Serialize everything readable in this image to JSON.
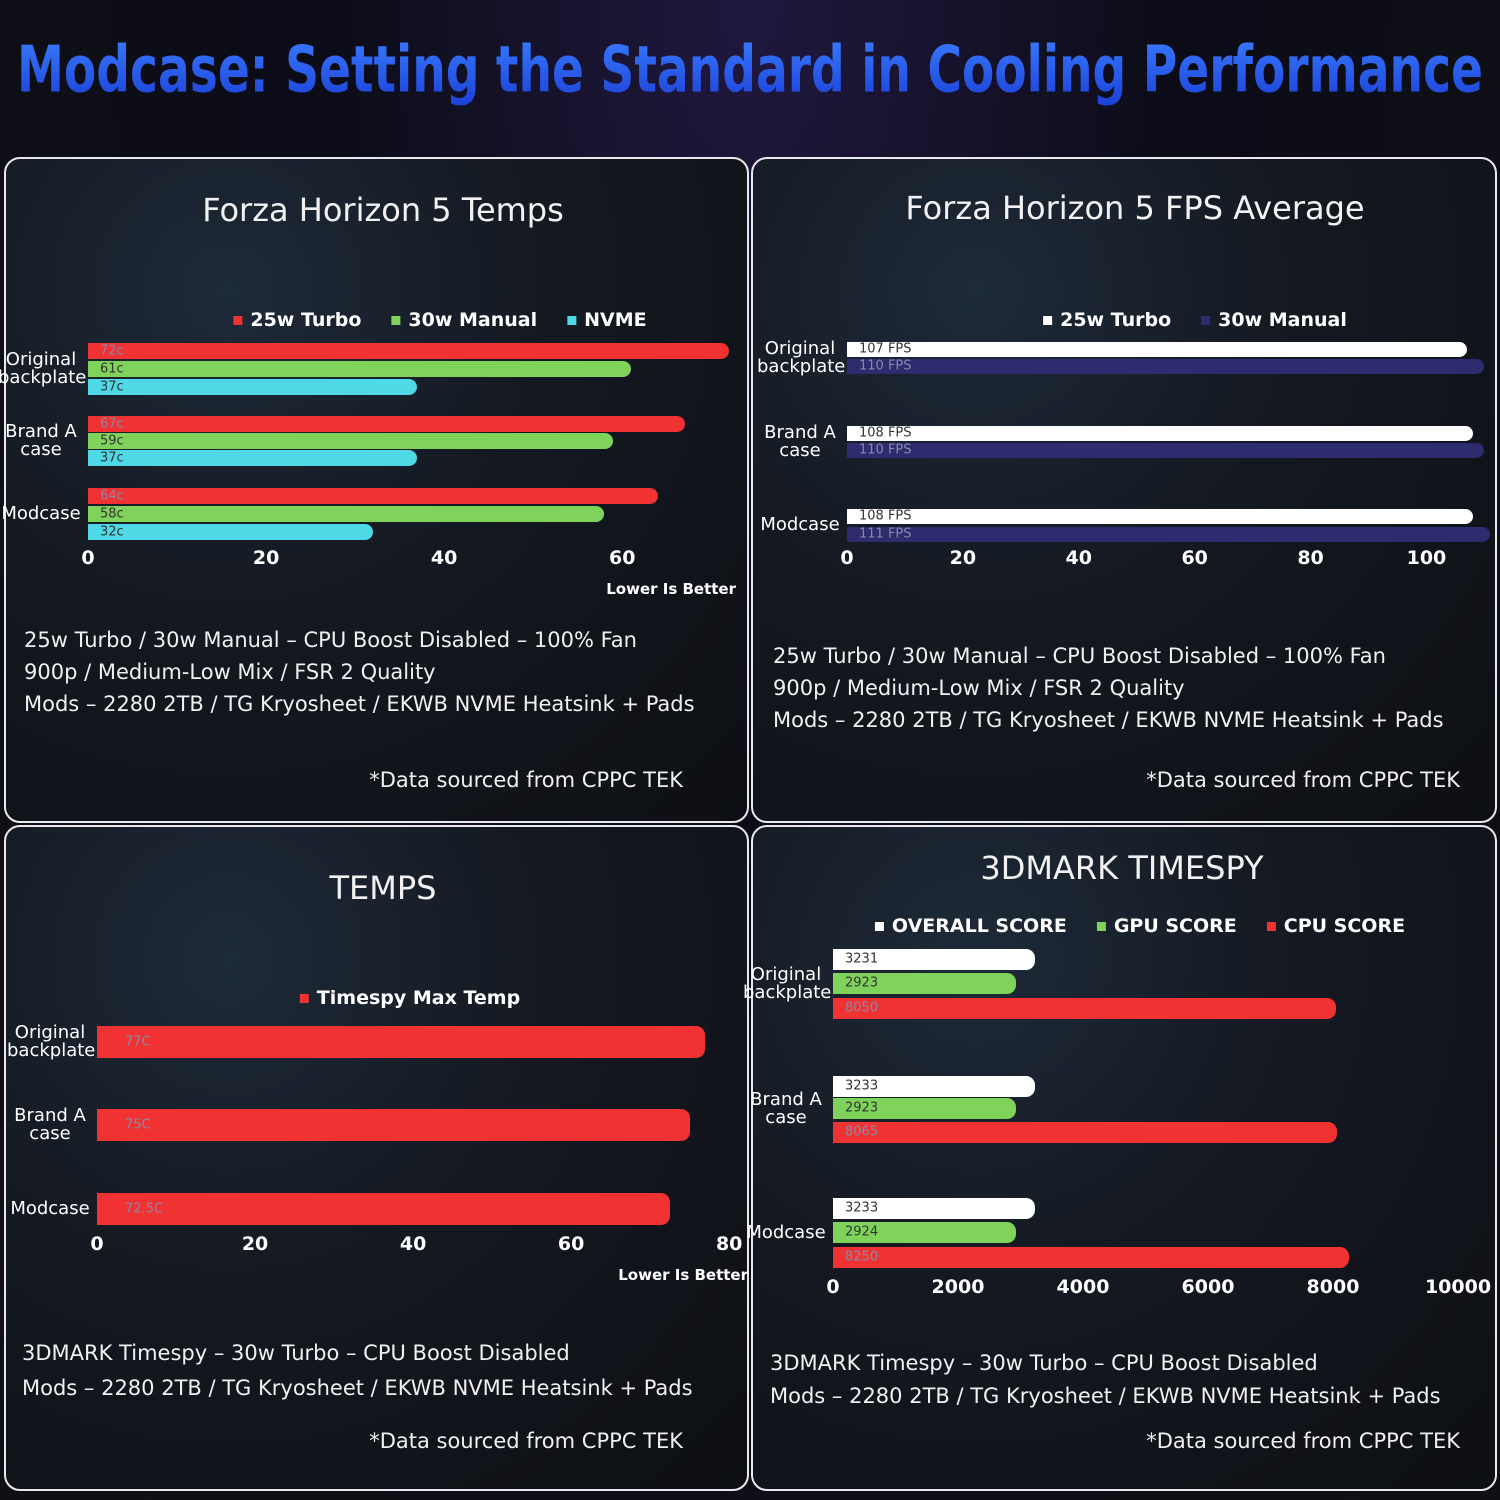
{
  "title": "Modcase: Setting the Standard in Cooling Performance",
  "chart_data": [
    {
      "type": "bar",
      "orientation": "horizontal",
      "title": "Forza Horizon 5 Temps",
      "categories": [
        "Original backplate",
        "Brand A case",
        "Modcase"
      ],
      "series": [
        {
          "name": "25w Turbo",
          "color": "#f03232",
          "values": [
            72,
            67,
            64
          ],
          "value_labels": [
            "72c",
            "67c",
            "64c"
          ]
        },
        {
          "name": "30w Manual",
          "color": "#7fd35a",
          "values": [
            61,
            59,
            58
          ],
          "value_labels": [
            "61c",
            "59c",
            "58c"
          ]
        },
        {
          "name": "NVME",
          "color": "#4fd8e6",
          "values": [
            37,
            37,
            32
          ],
          "value_labels": [
            "37c",
            "37c",
            "32c"
          ]
        }
      ],
      "xlim": [
        0,
        73
      ],
      "xticks": [
        0,
        20,
        40,
        60
      ],
      "annotation": "Lower Is Better",
      "notes": [
        "25w Turbo / 30w Manual – CPU Boost Disabled – 100% Fan",
        "900p / Medium-Low Mix / FSR 2 Quality",
        "Mods – 2280 2TB / TG Kryosheet / EKWB NVME Heatsink + Pads"
      ],
      "source": "*Data sourced from CPPC TEK"
    },
    {
      "type": "bar",
      "orientation": "horizontal",
      "title": "Forza Horizon 5 FPS Average",
      "categories": [
        "Original backplate",
        "Brand A case",
        "Modcase"
      ],
      "series": [
        {
          "name": "25w Turbo",
          "color": "#ffffff",
          "values": [
            107,
            108,
            108
          ],
          "value_labels": [
            "107 FPS",
            "108 FPS",
            "108 FPS"
          ]
        },
        {
          "name": "30w Manual",
          "color": "#2c2c6e",
          "values": [
            110,
            110,
            111
          ],
          "value_labels": [
            "110 FPS",
            "110 FPS",
            "111 FPS"
          ]
        }
      ],
      "xlim": [
        0,
        112
      ],
      "xticks": [
        0,
        20,
        40,
        60,
        80,
        100
      ],
      "notes": [
        "25w Turbo / 30w Manual – CPU Boost Disabled – 100% Fan",
        "900p / Medium-Low Mix / FSR 2 Quality",
        "Mods – 2280 2TB / TG Kryosheet / EKWB NVME Heatsink + Pads"
      ],
      "source": "*Data sourced from CPPC TEK"
    },
    {
      "type": "bar",
      "orientation": "horizontal",
      "title": "TEMPS",
      "categories": [
        "Original backplate",
        "Brand A case",
        "Modcase"
      ],
      "series": [
        {
          "name": "Timespy Max Temp",
          "color": "#f03232",
          "values": [
            77,
            75,
            72.5
          ],
          "value_labels": [
            "77C",
            "75C",
            "72.5C"
          ]
        }
      ],
      "xlim": [
        0,
        82
      ],
      "xticks": [
        0,
        20,
        40,
        60,
        80
      ],
      "annotation": "Lower Is Better",
      "notes": [
        "3DMARK Timespy – 30w Turbo – CPU Boost Disabled",
        "Mods – 2280 2TB / TG Kryosheet / EKWB NVME Heatsink + Pads"
      ],
      "source": "*Data sourced from CPPC TEK"
    },
    {
      "type": "bar",
      "orientation": "horizontal",
      "title": "3DMARK TIMESPY",
      "categories": [
        "Original backplate",
        "Brand A case",
        "Modcase"
      ],
      "series": [
        {
          "name": "OVERALL SCORE",
          "color": "#ffffff",
          "values": [
            3231,
            3233,
            3233
          ]
        },
        {
          "name": "GPU SCORE",
          "color": "#7fd35a",
          "values": [
            2923,
            2923,
            2924
          ]
        },
        {
          "name": "CPU SCORE",
          "color": "#f03232",
          "values": [
            8050,
            8065,
            8250
          ]
        }
      ],
      "xlim": [
        0,
        10000
      ],
      "xticks": [
        0,
        2000,
        4000,
        6000,
        8000,
        10000
      ],
      "notes": [
        "3DMARK Timespy – 30w Turbo – CPU Boost Disabled",
        "Mods – 2280 2TB / TG Kryosheet / EKWB NVME Heatsink + Pads"
      ],
      "source": "*Data sourced from CPPC TEK"
    }
  ]
}
